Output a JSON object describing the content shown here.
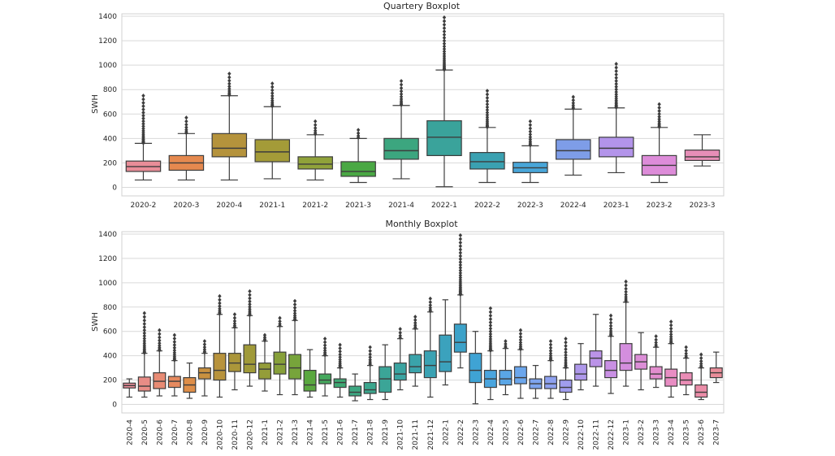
{
  "chart_data": [
    {
      "type": "boxplot",
      "title": "Quartery Boxplot",
      "xlabel": "",
      "ylabel": "SWH",
      "ylim": [
        -70,
        1420
      ],
      "yticks": [
        0,
        200,
        400,
        600,
        800,
        1000,
        1200,
        1400
      ],
      "grid": true,
      "categories": [
        "2020-2",
        "2020-3",
        "2020-4",
        "2021-1",
        "2021-2",
        "2021-3",
        "2021-4",
        "2022-1",
        "2022-2",
        "2022-3",
        "2022-4",
        "2023-1",
        "2023-2",
        "2023-3"
      ],
      "colors": [
        "#e98d98",
        "#e5894f",
        "#b5933c",
        "#a49b38",
        "#90a23a",
        "#4aa844",
        "#3ca67f",
        "#3aa39b",
        "#3aa1b1",
        "#48a6d9",
        "#7e9de8",
        "#b394ea",
        "#dd8cd9",
        "#e68eb7"
      ],
      "series": [
        {
          "q1": 130,
          "median": 170,
          "q3": 215,
          "whisker_low": 60,
          "whisker_high": 360,
          "outlier_max": 750
        },
        {
          "q1": 140,
          "median": 200,
          "q3": 260,
          "whisker_low": 60,
          "whisker_high": 440,
          "outlier_max": 570
        },
        {
          "q1": 250,
          "median": 320,
          "q3": 440,
          "whisker_low": 60,
          "whisker_high": 750,
          "outlier_max": 930
        },
        {
          "q1": 210,
          "median": 290,
          "q3": 390,
          "whisker_low": 70,
          "whisker_high": 660,
          "outlier_max": 850
        },
        {
          "q1": 150,
          "median": 190,
          "q3": 250,
          "whisker_low": 60,
          "whisker_high": 430,
          "outlier_max": 540
        },
        {
          "q1": 90,
          "median": 130,
          "q3": 210,
          "whisker_low": 40,
          "whisker_high": 400,
          "outlier_max": 470
        },
        {
          "q1": 230,
          "median": 300,
          "q3": 400,
          "whisker_low": 70,
          "whisker_high": 670,
          "outlier_max": 870
        },
        {
          "q1": 260,
          "median": 410,
          "q3": 545,
          "whisker_low": 5,
          "whisker_high": 960,
          "outlier_max": 1390
        },
        {
          "q1": 150,
          "median": 210,
          "q3": 285,
          "whisker_low": 40,
          "whisker_high": 490,
          "outlier_max": 790
        },
        {
          "q1": 120,
          "median": 160,
          "q3": 205,
          "whisker_low": 40,
          "whisker_high": 340,
          "outlier_max": 540
        },
        {
          "q1": 230,
          "median": 300,
          "q3": 390,
          "whisker_low": 100,
          "whisker_high": 640,
          "outlier_max": 740
        },
        {
          "q1": 250,
          "median": 320,
          "q3": 410,
          "whisker_low": 120,
          "whisker_high": 650,
          "outlier_max": 1010
        },
        {
          "q1": 100,
          "median": 180,
          "q3": 260,
          "whisker_low": 40,
          "whisker_high": 490,
          "outlier_max": 680
        },
        {
          "q1": 220,
          "median": 250,
          "q3": 305,
          "whisker_low": 175,
          "whisker_high": 430,
          "outlier_max": null
        }
      ]
    },
    {
      "type": "boxplot",
      "title": "Monthly Boxplot",
      "xlabel": "",
      "ylabel": "SWH",
      "ylim": [
        -70,
        1420
      ],
      "yticks": [
        0,
        200,
        400,
        600,
        800,
        1000,
        1200,
        1400
      ],
      "grid": true,
      "categories": [
        "2020-4",
        "2020-5",
        "2020-6",
        "2020-7",
        "2020-8",
        "2020-9",
        "2020-10",
        "2020-11",
        "2020-12",
        "2021-1",
        "2021-2",
        "2021-3",
        "2021-4",
        "2021-5",
        "2021-6",
        "2021-7",
        "2021-8",
        "2021-9",
        "2021-10",
        "2021-11",
        "2021-12",
        "2022-1",
        "2022-2",
        "2022-3",
        "2022-4",
        "2022-5",
        "2022-6",
        "2022-7",
        "2022-8",
        "2022-9",
        "2022-10",
        "2022-11",
        "2022-12",
        "2023-1",
        "2023-2",
        "2023-3",
        "2023-4",
        "2023-5",
        "2023-6",
        "2023-7"
      ],
      "colors": [
        "#e98d98",
        "#e88c86",
        "#e88b74",
        "#e68a5f",
        "#de8e49",
        "#c99140",
        "#b8933c",
        "#ab963a",
        "#a09a39",
        "#949d39",
        "#87a03a",
        "#77a43b",
        "#5aa83f",
        "#45a85d",
        "#3ea873",
        "#3ca781",
        "#3ba68d",
        "#3ba597",
        "#3aa4a1",
        "#3aa3aa",
        "#3aa2b3",
        "#3ba2bd",
        "#3ca2c9",
        "#3fa3d4",
        "#4aa5de",
        "#5aa6e6",
        "#6ba6ec",
        "#7da4ee",
        "#8ea1ef",
        "#a09ded",
        "#ae98ea",
        "#bb93e8",
        "#c990e4",
        "#d48ede",
        "#dc8ed7",
        "#e28dce",
        "#e88dc3",
        "#ea8db6",
        "#eb8da8",
        "#ea8d9a"
      ],
      "series": [
        {
          "q1": 135,
          "median": 155,
          "q3": 175,
          "whisker_low": 60,
          "whisker_high": 210,
          "outlier_max": null
        },
        {
          "q1": 110,
          "median": 150,
          "q3": 225,
          "whisker_low": 60,
          "whisker_high": 420,
          "outlier_max": 750
        },
        {
          "q1": 130,
          "median": 190,
          "q3": 260,
          "whisker_low": 70,
          "whisker_high": 440,
          "outlier_max": 610
        },
        {
          "q1": 140,
          "median": 190,
          "q3": 230,
          "whisker_low": 70,
          "whisker_high": 360,
          "outlier_max": 570
        },
        {
          "q1": 100,
          "median": 160,
          "q3": 220,
          "whisker_low": 50,
          "whisker_high": 340,
          "outlier_max": null
        },
        {
          "q1": 210,
          "median": 260,
          "q3": 300,
          "whisker_low": 70,
          "whisker_high": 420,
          "outlier_max": 520
        },
        {
          "q1": 200,
          "median": 280,
          "q3": 420,
          "whisker_low": 60,
          "whisker_high": 740,
          "outlier_max": 890
        },
        {
          "q1": 270,
          "median": 340,
          "q3": 420,
          "whisker_low": 120,
          "whisker_high": 630,
          "outlier_max": 740
        },
        {
          "q1": 260,
          "median": 330,
          "q3": 490,
          "whisker_low": 150,
          "whisker_high": 730,
          "outlier_max": 930
        },
        {
          "q1": 210,
          "median": 290,
          "q3": 340,
          "whisker_low": 110,
          "whisker_high": 520,
          "outlier_max": 570
        },
        {
          "q1": 250,
          "median": 330,
          "q3": 430,
          "whisker_low": 80,
          "whisker_high": 640,
          "outlier_max": 710
        },
        {
          "q1": 210,
          "median": 300,
          "q3": 410,
          "whisker_low": 80,
          "whisker_high": 690,
          "outlier_max": 850
        },
        {
          "q1": 110,
          "median": 160,
          "q3": 280,
          "whisker_low": 60,
          "whisker_high": 450,
          "outlier_max": null
        },
        {
          "q1": 170,
          "median": 200,
          "q3": 250,
          "whisker_low": 70,
          "whisker_high": 400,
          "outlier_max": 540
        },
        {
          "q1": 140,
          "median": 180,
          "q3": 210,
          "whisker_low": 60,
          "whisker_high": 300,
          "outlier_max": 490
        },
        {
          "q1": 70,
          "median": 100,
          "q3": 150,
          "whisker_low": 30,
          "whisker_high": 250,
          "outlier_max": null
        },
        {
          "q1": 90,
          "median": 120,
          "q3": 180,
          "whisker_low": 40,
          "whisker_high": 320,
          "outlier_max": 470
        },
        {
          "q1": 100,
          "median": 210,
          "q3": 310,
          "whisker_low": 40,
          "whisker_high": 490,
          "outlier_max": null
        },
        {
          "q1": 200,
          "median": 250,
          "q3": 340,
          "whisker_low": 120,
          "whisker_high": 540,
          "outlier_max": 620
        },
        {
          "q1": 260,
          "median": 310,
          "q3": 410,
          "whisker_low": 150,
          "whisker_high": 620,
          "outlier_max": 720
        },
        {
          "q1": 220,
          "median": 320,
          "q3": 440,
          "whisker_low": 60,
          "whisker_high": 760,
          "outlier_max": 870
        },
        {
          "q1": 270,
          "median": 350,
          "q3": 570,
          "whisker_low": 160,
          "whisker_high": 860,
          "outlier_max": null
        },
        {
          "q1": 430,
          "median": 510,
          "q3": 660,
          "whisker_low": 300,
          "whisker_high": 900,
          "outlier_max": 1390
        },
        {
          "q1": 180,
          "median": 280,
          "q3": 420,
          "whisker_low": 5,
          "whisker_high": 600,
          "outlier_max": null
        },
        {
          "q1": 140,
          "median": 210,
          "q3": 280,
          "whisker_low": 40,
          "whisker_high": 440,
          "outlier_max": 790
        },
        {
          "q1": 160,
          "median": 210,
          "q3": 280,
          "whisker_low": 80,
          "whisker_high": 460,
          "outlier_max": 520
        },
        {
          "q1": 170,
          "median": 220,
          "q3": 310,
          "whisker_low": 50,
          "whisker_high": 450,
          "outlier_max": 610
        },
        {
          "q1": 130,
          "median": 170,
          "q3": 210,
          "whisker_low": 50,
          "whisker_high": 320,
          "outlier_max": null
        },
        {
          "q1": 130,
          "median": 170,
          "q3": 230,
          "whisker_low": 50,
          "whisker_high": 360,
          "outlier_max": 520
        },
        {
          "q1": 100,
          "median": 140,
          "q3": 200,
          "whisker_low": 40,
          "whisker_high": 300,
          "outlier_max": 540
        },
        {
          "q1": 200,
          "median": 250,
          "q3": 330,
          "whisker_low": 120,
          "whisker_high": 500,
          "outlier_max": null
        },
        {
          "q1": 310,
          "median": 380,
          "q3": 440,
          "whisker_low": 150,
          "whisker_high": 740,
          "outlier_max": null
        },
        {
          "q1": 220,
          "median": 280,
          "q3": 360,
          "whisker_low": 90,
          "whisker_high": 560,
          "outlier_max": 730
        },
        {
          "q1": 280,
          "median": 340,
          "q3": 500,
          "whisker_low": 150,
          "whisker_high": 840,
          "outlier_max": 1010
        },
        {
          "q1": 290,
          "median": 350,
          "q3": 410,
          "whisker_low": 120,
          "whisker_high": 590,
          "outlier_max": null
        },
        {
          "q1": 210,
          "median": 250,
          "q3": 310,
          "whisker_low": 140,
          "whisker_high": 470,
          "outlier_max": 560
        },
        {
          "q1": 150,
          "median": 220,
          "q3": 290,
          "whisker_low": 60,
          "whisker_high": 500,
          "outlier_max": 680
        },
        {
          "q1": 160,
          "median": 200,
          "q3": 260,
          "whisker_low": 80,
          "whisker_high": 380,
          "outlier_max": 470
        },
        {
          "q1": 60,
          "median": 100,
          "q3": 160,
          "whisker_low": 40,
          "whisker_high": 300,
          "outlier_max": 410
        },
        {
          "q1": 220,
          "median": 260,
          "q3": 300,
          "whisker_low": 180,
          "whisker_high": 430,
          "outlier_max": null
        }
      ]
    }
  ]
}
